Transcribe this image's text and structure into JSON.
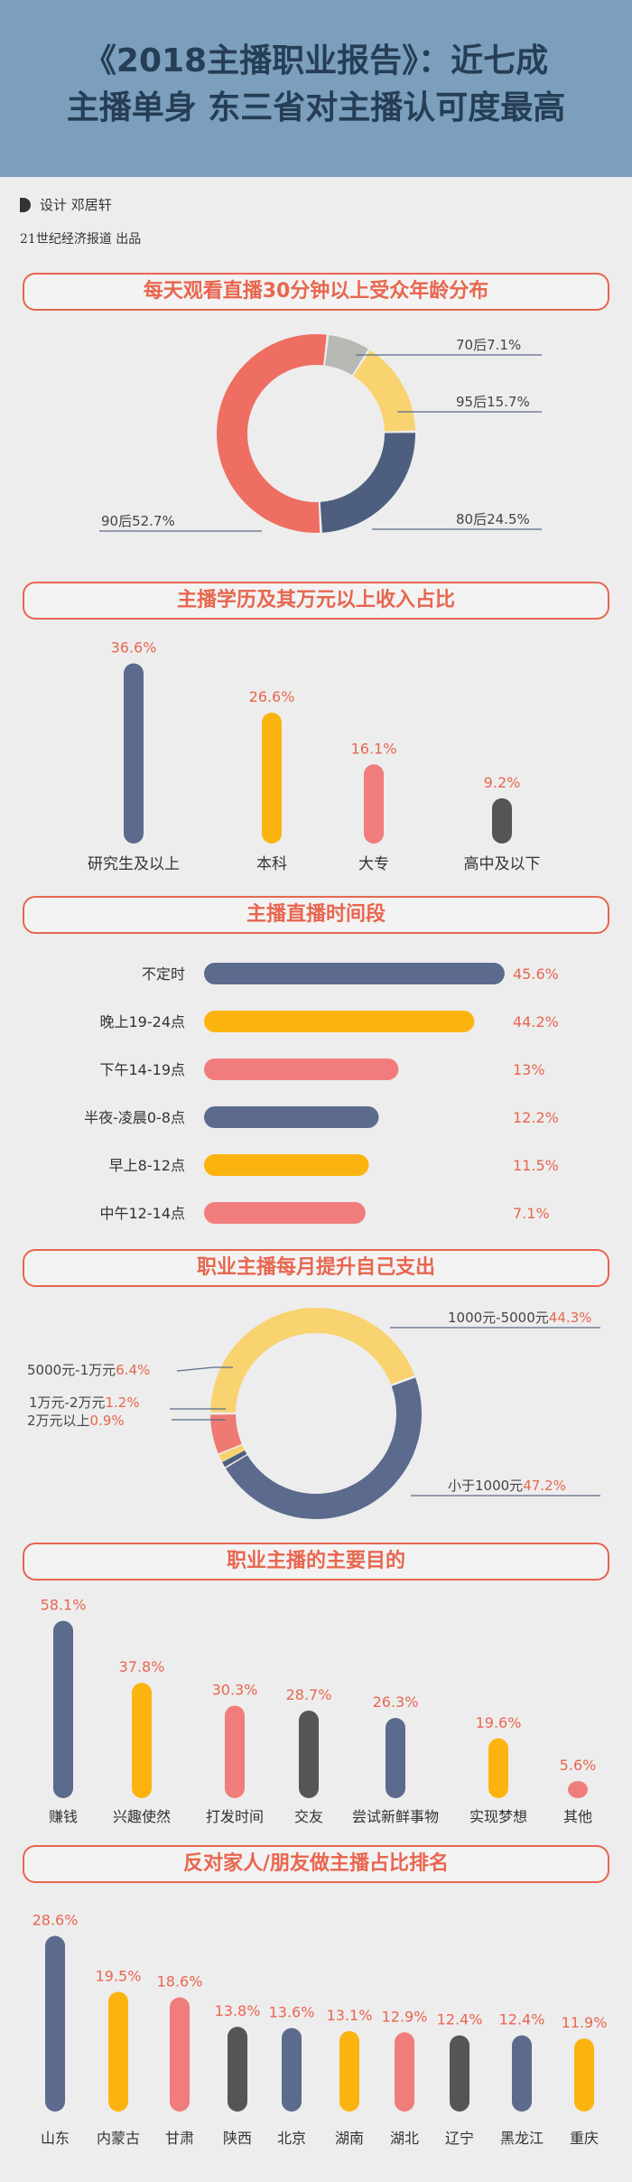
{
  "header": {
    "title_line1": "《2018主播职业报告》：近七成",
    "title_line2": "主播单身 东三省对主播认可度最高"
  },
  "credit": {
    "designer": "设计  邓居轩",
    "publisher": "21世纪经济报道  出品"
  },
  "sections": {
    "s1": "每天观看直播30分钟以上受众年龄分布",
    "s2": "主播学历及其万元以上收入占比",
    "s3": "主播直播时间段",
    "s4": "职业主播每月提升自己支出",
    "s5": "职业主播的主要目的",
    "s6": "反对家人/朋友做主播占比排名"
  },
  "colors": {
    "navy": "#5b6a8d",
    "yellow": "#fbb40f",
    "pink": "#f17c7c",
    "gray": "#555555",
    "accent": "#e8664f"
  },
  "chart_data": [
    {
      "type": "pie",
      "donut": true,
      "categories": [
        "70后",
        "95后",
        "80后",
        "90后"
      ],
      "values": [
        7.1,
        15.7,
        24.5,
        52.7
      ],
      "labels": [
        "70后7.1%",
        "95后15.7%",
        "80后24.5%",
        "90后52.7%"
      ],
      "colors": [
        "#b6b9b4",
        "#f8d36f",
        "#4d5e7e",
        "#ef6e62"
      ]
    },
    {
      "type": "bar",
      "orientation": "vertical",
      "categories": [
        "研究生及以上",
        "本科",
        "大专",
        "高中及以下"
      ],
      "values": [
        36.6,
        26.6,
        16.1,
        9.2
      ],
      "labels": [
        "36.6%",
        "26.6%",
        "16.1%",
        "9.2%"
      ],
      "colors": [
        "#5b6a8d",
        "#fbb40f",
        "#f17c7c",
        "#555555"
      ]
    },
    {
      "type": "bar",
      "orientation": "horizontal",
      "categories": [
        "不定时",
        "晚上19-24点",
        "下午14-19点",
        "半夜-凌晨0-8点",
        "早上8-12点",
        "中午12-14点"
      ],
      "values": [
        45.6,
        44.2,
        13,
        12.2,
        11.5,
        7.1
      ],
      "bar_lengths": [
        45.6,
        41,
        29.5,
        26.5,
        25,
        24.5
      ],
      "labels": [
        "45.6%",
        "44.2%",
        "13%",
        "12.2%",
        "11.5%",
        "7.1%"
      ],
      "colors": [
        "#5b6a8d",
        "#fbb40f",
        "#f17c7c",
        "#5b6a8d",
        "#fbb40f",
        "#f17c7c"
      ]
    },
    {
      "type": "pie",
      "donut": true,
      "categories": [
        "1000元-5000元",
        "小于1000元",
        "2万元以上",
        "1万元-2万元",
        "5000元-1万元"
      ],
      "values": [
        44.3,
        47.2,
        0.9,
        1.2,
        6.4
      ],
      "labels": [
        "44.3%",
        "47.2%",
        "0.9%",
        "1.2%",
        "6.4%"
      ],
      "colors": [
        "#f8d36f",
        "#5b6a8d",
        "#4d5e7e",
        "#f8d36f",
        "#ef7a72"
      ]
    },
    {
      "type": "bar",
      "orientation": "vertical",
      "categories": [
        "赚钱",
        "兴趣使然",
        "打发时间",
        "交友",
        "尝试新鲜事物",
        "实现梦想",
        "其他"
      ],
      "values": [
        58.1,
        37.8,
        30.3,
        28.7,
        26.3,
        19.6,
        5.6
      ],
      "labels": [
        "58.1%",
        "37.8%",
        "30.3%",
        "28.7%",
        "26.3%",
        "19.6%",
        "5.6%"
      ],
      "colors": [
        "#5b6a8d",
        "#fbb40f",
        "#f17c7c",
        "#555555",
        "#5b6a8d",
        "#fbb40f",
        "#f17c7c"
      ]
    },
    {
      "type": "bar",
      "orientation": "vertical",
      "categories": [
        "山东",
        "内蒙古",
        "甘肃",
        "陕西",
        "北京",
        "湖南",
        "湖北",
        "辽宁",
        "黑龙江",
        "重庆"
      ],
      "values": [
        28.6,
        19.5,
        18.6,
        13.8,
        13.6,
        13.1,
        12.9,
        12.4,
        12.4,
        11.9
      ],
      "labels": [
        "28.6%",
        "19.5%",
        "18.6%",
        "13.8%",
        "13.6%",
        "13.1%",
        "12.9%",
        "12.4%",
        "12.4%",
        "11.9%"
      ],
      "colors": [
        "#5b6a8d",
        "#fbb40f",
        "#f17c7c",
        "#555555",
        "#5b6a8d",
        "#fbb40f",
        "#f17c7c",
        "#555555",
        "#5b6a8d",
        "#fbb40f"
      ]
    }
  ]
}
